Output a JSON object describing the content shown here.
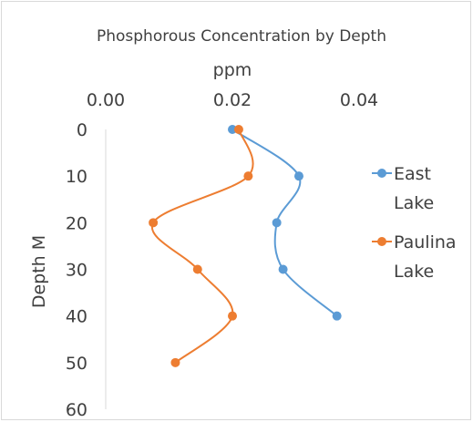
{
  "chart_data": {
    "type": "line",
    "title": "Phosphorous Concentration by Depth",
    "xlabel": "ppm",
    "ylabel": "Depth M",
    "xlim": [
      0,
      0.04
    ],
    "ylim": [
      0,
      60
    ],
    "y_inverted": true,
    "x_axis_position": "top",
    "x_ticks": [
      "0.00",
      "0.02",
      "0.04"
    ],
    "x_tick_values": [
      0,
      0.02,
      0.04
    ],
    "y_ticks": [
      "0",
      "10",
      "20",
      "30",
      "40",
      "50",
      "60"
    ],
    "y_tick_values": [
      0,
      10,
      20,
      30,
      40,
      50,
      60
    ],
    "grid": false,
    "smooth": true,
    "legend_position": "right",
    "series": [
      {
        "name": "East Lake",
        "legend_lines": [
          "East",
          "Lake"
        ],
        "color": "#5b9bd5",
        "points": [
          {
            "x": 0.02,
            "y": 0
          },
          {
            "x": 0.0305,
            "y": 10
          },
          {
            "x": 0.027,
            "y": 20
          },
          {
            "x": 0.028,
            "y": 30
          },
          {
            "x": 0.0365,
            "y": 40
          }
        ]
      },
      {
        "name": "Paulina Lake",
        "legend_lines": [
          "Paulina",
          "Lake"
        ],
        "color": "#ed7d31",
        "points": [
          {
            "x": 0.021,
            "y": 0
          },
          {
            "x": 0.0225,
            "y": 10
          },
          {
            "x": 0.0075,
            "y": 20
          },
          {
            "x": 0.0145,
            "y": 30
          },
          {
            "x": 0.02,
            "y": 40
          },
          {
            "x": 0.011,
            "y": 50
          }
        ]
      }
    ]
  }
}
